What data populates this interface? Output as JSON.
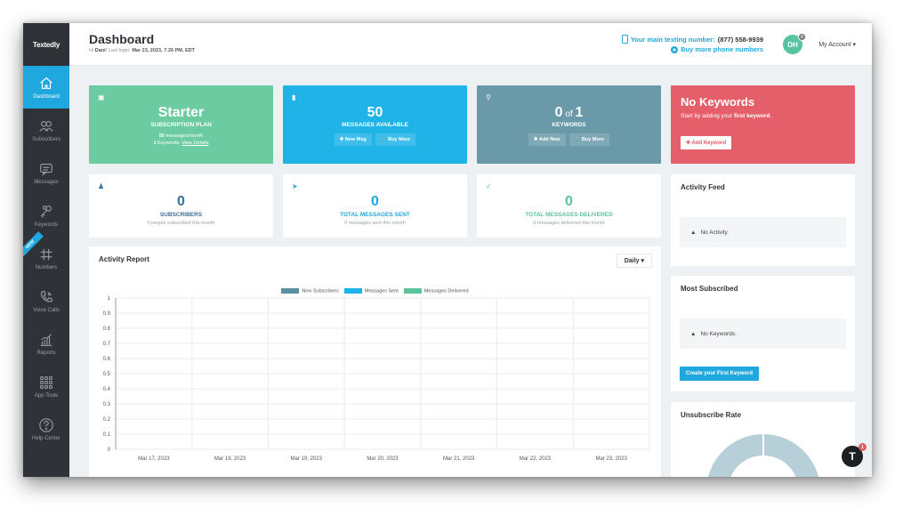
{
  "app": {
    "logo": "Textedly"
  },
  "sidebar": {
    "items": [
      {
        "label": "Dashboard",
        "icon": "home-icon"
      },
      {
        "label": "Subscribers",
        "icon": "users-icon"
      },
      {
        "label": "Messages",
        "icon": "message-icon"
      },
      {
        "label": "Keywords",
        "icon": "keys-icon"
      },
      {
        "label": "Numbers",
        "icon": "hash-icon",
        "ribbon": "NEW"
      },
      {
        "label": "Voice Calls",
        "icon": "phone-icon"
      },
      {
        "label": "Reports",
        "icon": "chart-icon"
      },
      {
        "label": "App Tools",
        "icon": "grid-icon"
      },
      {
        "label": "Help Center",
        "icon": "help-icon"
      }
    ]
  },
  "header": {
    "title": "Dashboard",
    "greeting_prefix": "Hi ",
    "user": "Dani",
    "greeting_mid": "! Last login: ",
    "last_login": "Mar 23, 2023, 7:26 PM, EDT",
    "phone_label": "Your main texting number:",
    "phone_number": "(877) 558-9939",
    "buy_more": "Buy more phone numbers",
    "avatar": "DH",
    "avatar_badge": "0",
    "account": "My Account"
  },
  "cards": {
    "plan": {
      "big": "Starter",
      "label": "SUBSCRIPTION PLAN",
      "line1_num": "50",
      "line1": " messages/month",
      "line2_num": "1",
      "line2": " Keywords. ",
      "line2_link": "View Details",
      "color": "#6ccba0"
    },
    "messages": {
      "big": "50",
      "label": "MESSAGES AVAILABLE",
      "btn1": "New Msg",
      "btn2": "Buy More",
      "color": "#1fb3e8"
    },
    "keywords": {
      "big_a": "0",
      "big_of": " of ",
      "big_b": "1",
      "label": "KEYWORDS",
      "btn1": "Add New",
      "btn2": "Buy More",
      "color": "#6a9aaa"
    },
    "no_keywords": {
      "title": "No Keywords",
      "sub_pre": "Start by adding your ",
      "sub_bold": "first keyword",
      "sub_post": ".",
      "btn": "Add Keyword",
      "color": "#e55f6b"
    }
  },
  "metrics": [
    {
      "num": "0",
      "label": "SUBSCRIBERS",
      "sub": "0 people subscribed this month",
      "color": "#3a6f9a"
    },
    {
      "num": "0",
      "label": "TOTAL MESSAGES SENT",
      "sub": "0 messages sent this month",
      "color": "#1fa8df"
    },
    {
      "num": "0",
      "label": "TOTAL MESSAGES DELIVERED",
      "sub": "0 messages delivered this month",
      "color": "#5cc39b"
    }
  ],
  "activity_report": {
    "title": "Activity Report",
    "period": "Daily"
  },
  "activity_feed": {
    "title": "Activity Feed",
    "empty": "No Activity."
  },
  "most_subscribed": {
    "title": "Most Subscribed",
    "empty": "No Keywords.",
    "btn": "Create your First Keyword"
  },
  "unsubscribe": {
    "title": "Unsubscribe Rate"
  },
  "chat": {
    "glyph": "T",
    "count": "1"
  },
  "chart_data": {
    "type": "line",
    "categories": [
      "Mar 17, 2023",
      "Mar 18, 2023",
      "Mar 19, 2023",
      "Mar 20, 2023",
      "Mar 21, 2023",
      "Mar 22, 2023",
      "Mar 23, 2023"
    ],
    "series": [
      {
        "name": "New Subscribers",
        "color": "#5f8fa2",
        "values": [
          0,
          0,
          0,
          0,
          0,
          0,
          0
        ]
      },
      {
        "name": "Messages Sent",
        "color": "#1fb3e8",
        "values": [
          0,
          0,
          0,
          0,
          0,
          0,
          0
        ]
      },
      {
        "name": "Messages Delivered",
        "color": "#5cc39b",
        "values": [
          0,
          0,
          0,
          0,
          0,
          0,
          0
        ]
      }
    ],
    "yticks": [
      "0",
      "0.1",
      "0.2",
      "0.3",
      "0.4",
      "0.5",
      "0.6",
      "0.7",
      "0.8",
      "0.9",
      "1"
    ],
    "ylim": [
      0,
      1
    ],
    "legend": "top",
    "grid": true
  }
}
